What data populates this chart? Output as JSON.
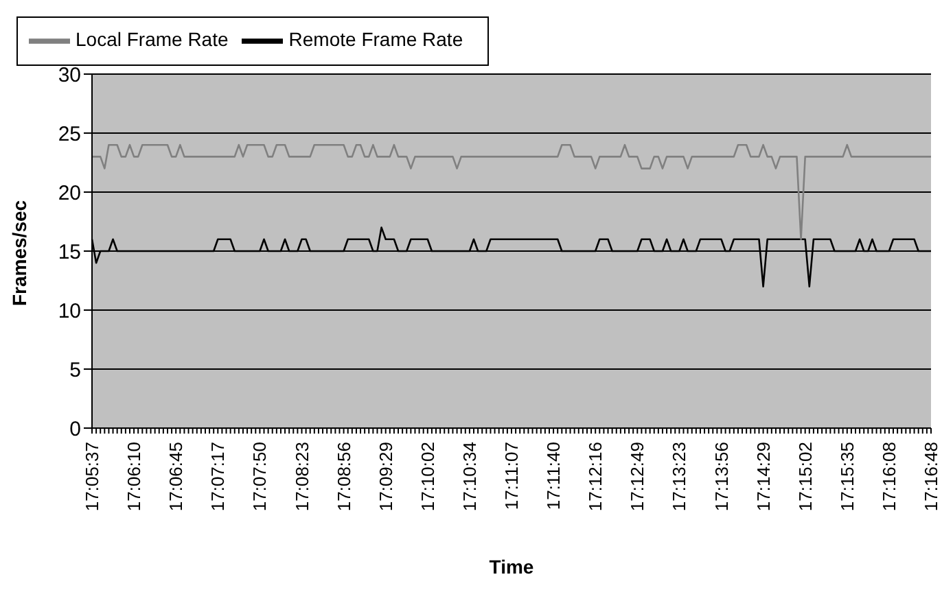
{
  "chart_data": {
    "type": "line",
    "xlabel": "Time",
    "ylabel": "Frames/sec",
    "categories": [
      "17:05:37",
      null,
      null,
      null,
      null,
      null,
      null,
      null,
      null,
      null,
      "17:06:10",
      null,
      null,
      null,
      null,
      null,
      null,
      null,
      null,
      null,
      "17:06:45",
      null,
      null,
      null,
      null,
      null,
      null,
      null,
      null,
      null,
      "17:07:17",
      null,
      null,
      null,
      null,
      null,
      null,
      null,
      null,
      null,
      "17:07:50",
      null,
      null,
      null,
      null,
      null,
      null,
      null,
      null,
      null,
      "17:08:23",
      null,
      null,
      null,
      null,
      null,
      null,
      null,
      null,
      null,
      "17:08:56",
      null,
      null,
      null,
      null,
      null,
      null,
      null,
      null,
      null,
      "17:09:29",
      null,
      null,
      null,
      null,
      null,
      null,
      null,
      null,
      null,
      "17:10:02",
      null,
      null,
      null,
      null,
      null,
      null,
      null,
      null,
      null,
      "17:10:34",
      null,
      null,
      null,
      null,
      null,
      null,
      null,
      null,
      null,
      "17:11:07",
      null,
      null,
      null,
      null,
      null,
      null,
      null,
      null,
      null,
      "17:11:40",
      null,
      null,
      null,
      null,
      null,
      null,
      null,
      null,
      null,
      "17:12:16",
      null,
      null,
      null,
      null,
      null,
      null,
      null,
      null,
      null,
      "17:12:49",
      null,
      null,
      null,
      null,
      null,
      null,
      null,
      null,
      null,
      "17:13:23",
      null,
      null,
      null,
      null,
      null,
      null,
      null,
      null,
      null,
      "17:13:56",
      null,
      null,
      null,
      null,
      null,
      null,
      null,
      null,
      null,
      "17:14:29",
      null,
      null,
      null,
      null,
      null,
      null,
      null,
      null,
      null,
      "17:15:02",
      null,
      null,
      null,
      null,
      null,
      null,
      null,
      null,
      null,
      "17:15:35",
      null,
      null,
      null,
      null,
      null,
      null,
      null,
      null,
      null,
      "17:16:08",
      null,
      null,
      null,
      null,
      null,
      null,
      null,
      null,
      null,
      "17:16:48"
    ],
    "series": [
      {
        "name": "Remote Frame Rate",
        "color": "#000000",
        "values": [
          16,
          14,
          15,
          15,
          15,
          16,
          15,
          15,
          15,
          15,
          15,
          15,
          15,
          15,
          15,
          15,
          15,
          15,
          15,
          15,
          15,
          15,
          15,
          15,
          15,
          15,
          15,
          15,
          15,
          15,
          16,
          16,
          16,
          16,
          15,
          15,
          15,
          15,
          15,
          15,
          15,
          16,
          15,
          15,
          15,
          15,
          16,
          15,
          15,
          15,
          16,
          16,
          15,
          15,
          15,
          15,
          15,
          15,
          15,
          15,
          15,
          16,
          16,
          16,
          16,
          16,
          16,
          15,
          15,
          17,
          16,
          16,
          16,
          15,
          15,
          15,
          16,
          16,
          16,
          16,
          16,
          15,
          15,
          15,
          15,
          15,
          15,
          15,
          15,
          15,
          15,
          16,
          15,
          15,
          15,
          16,
          16,
          16,
          16,
          16,
          16,
          16,
          16,
          16,
          16,
          16,
          16,
          16,
          16,
          16,
          16,
          16,
          15,
          15,
          15,
          15,
          15,
          15,
          15,
          15,
          15,
          16,
          16,
          16,
          15,
          15,
          15,
          15,
          15,
          15,
          15,
          16,
          16,
          16,
          15,
          15,
          15,
          16,
          15,
          15,
          15,
          16,
          15,
          15,
          15,
          16,
          16,
          16,
          16,
          16,
          16,
          15,
          15,
          16,
          16,
          16,
          16,
          16,
          16,
          16,
          12,
          16,
          16,
          16,
          16,
          16,
          16,
          16,
          16,
          16,
          16,
          12,
          16,
          16,
          16,
          16,
          16,
          15,
          15,
          15,
          15,
          15,
          15,
          16,
          15,
          15,
          16,
          15,
          15,
          15,
          15,
          16,
          16,
          16,
          16,
          16,
          16,
          15,
          15,
          15,
          15
        ]
      },
      {
        "name": "Local Frame Rate",
        "color": "#808080",
        "values": [
          23,
          23,
          23,
          22,
          24,
          24,
          24,
          23,
          23,
          24,
          23,
          23,
          24,
          24,
          24,
          24,
          24,
          24,
          24,
          23,
          23,
          24,
          23,
          23,
          23,
          23,
          23,
          23,
          23,
          23,
          23,
          23,
          23,
          23,
          23,
          24,
          23,
          24,
          24,
          24,
          24,
          24,
          23,
          23,
          24,
          24,
          24,
          23,
          23,
          23,
          23,
          23,
          23,
          24,
          24,
          24,
          24,
          24,
          24,
          24,
          24,
          23,
          23,
          24,
          24,
          23,
          23,
          24,
          23,
          23,
          23,
          23,
          24,
          23,
          23,
          23,
          22,
          23,
          23,
          23,
          23,
          23,
          23,
          23,
          23,
          23,
          23,
          22,
          23,
          23,
          23,
          23,
          23,
          23,
          23,
          23,
          23,
          23,
          23,
          23,
          23,
          23,
          23,
          23,
          23,
          23,
          23,
          23,
          23,
          23,
          23,
          23,
          24,
          24,
          24,
          23,
          23,
          23,
          23,
          23,
          22,
          23,
          23,
          23,
          23,
          23,
          23,
          24,
          23,
          23,
          23,
          22,
          22,
          22,
          23,
          23,
          22,
          23,
          23,
          23,
          23,
          23,
          22,
          23,
          23,
          23,
          23,
          23,
          23,
          23,
          23,
          23,
          23,
          23,
          24,
          24,
          24,
          23,
          23,
          23,
          24,
          23,
          23,
          22,
          23,
          23,
          23,
          23,
          23,
          16,
          23,
          23,
          23,
          23,
          23,
          23,
          23,
          23,
          23,
          23,
          24,
          23,
          23,
          23,
          23,
          23,
          23,
          23,
          23,
          23,
          23,
          23,
          23,
          23,
          23,
          23,
          23,
          23,
          23,
          23,
          23
        ]
      }
    ],
    "ylim": [
      0,
      30
    ],
    "yticks": [
      0,
      5,
      10,
      15,
      20,
      25,
      30
    ],
    "grid": "y",
    "legend": "top left",
    "marker": "none",
    "line_style": "solid"
  }
}
